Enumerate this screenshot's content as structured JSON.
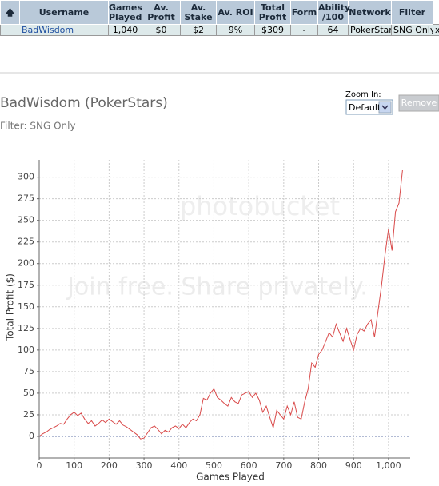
{
  "table": {
    "headers": [
      "Username",
      "Games Played",
      "Av. Profit",
      "Av. Stake",
      "Av. ROI",
      "Total Profit",
      "Form",
      "Ability /100",
      "Network",
      "Filter"
    ],
    "rows": [
      [
        "BadWisdom",
        "1,040",
        "$0",
        "$2",
        "9%",
        "$309",
        "-",
        "64",
        "PokerStars",
        "SNG Only",
        "x"
      ]
    ]
  },
  "controls": {
    "zoom_label": "Zoom In:",
    "zoom_value": "Default",
    "button": "Remove"
  },
  "watermark": {
    "brand": "photobucket",
    "tagline": "Join free. Share privately."
  },
  "chart_data": {
    "type": "line",
    "title": "BadWisdom (PokerStars)",
    "subtitle": "Filter: SNG Only",
    "x_label": "Games Played",
    "y_label": "Total Profit ($)",
    "color": "#d94a4a",
    "grid": true,
    "x": [
      0,
      10,
      20,
      30,
      40,
      50,
      60,
      70,
      80,
      90,
      100,
      110,
      120,
      130,
      140,
      150,
      160,
      170,
      180,
      190,
      200,
      210,
      220,
      230,
      240,
      250,
      260,
      270,
      280,
      290,
      300,
      310,
      320,
      330,
      340,
      350,
      360,
      370,
      380,
      390,
      400,
      410,
      420,
      430,
      440,
      450,
      460,
      470,
      480,
      490,
      500,
      510,
      520,
      530,
      540,
      550,
      560,
      570,
      580,
      590,
      600,
      610,
      620,
      630,
      640,
      650,
      660,
      670,
      680,
      690,
      700,
      710,
      720,
      730,
      740,
      750,
      760,
      770,
      780,
      790,
      800,
      810,
      820,
      830,
      840,
      850,
      860,
      870,
      880,
      890,
      900,
      910,
      920,
      930,
      940,
      950,
      960,
      970,
      980,
      990,
      1000,
      1010,
      1020,
      1030,
      1040
    ],
    "values": [
      0,
      3,
      5,
      8,
      10,
      12,
      15,
      14,
      20,
      25,
      28,
      24,
      27,
      20,
      15,
      18,
      12,
      15,
      19,
      16,
      20,
      17,
      14,
      18,
      13,
      11,
      8,
      5,
      2,
      -3,
      -2,
      4,
      10,
      12,
      8,
      3,
      7,
      5,
      10,
      12,
      9,
      14,
      10,
      16,
      20,
      18,
      25,
      44,
      42,
      50,
      55,
      45,
      42,
      38,
      35,
      45,
      40,
      38,
      48,
      50,
      52,
      45,
      50,
      42,
      28,
      35,
      22,
      10,
      30,
      25,
      20,
      35,
      25,
      40,
      22,
      20,
      40,
      55,
      85,
      80,
      95,
      100,
      110,
      120,
      115,
      130,
      120,
      110,
      125,
      112,
      100,
      118,
      125,
      122,
      130,
      135,
      115,
      145,
      175,
      210,
      240,
      215,
      260,
      270,
      308
    ],
    "xlim": [
      0,
      1062
    ],
    "ylim": [
      -25,
      320
    ],
    "xticks": [
      0,
      100,
      200,
      300,
      400,
      500,
      600,
      700,
      800,
      900,
      {
        "value": 1000,
        "label": "1,000"
      }
    ],
    "yticks": [
      0,
      25,
      50,
      75,
      100,
      125,
      150,
      175,
      200,
      225,
      250,
      275,
      300
    ]
  }
}
